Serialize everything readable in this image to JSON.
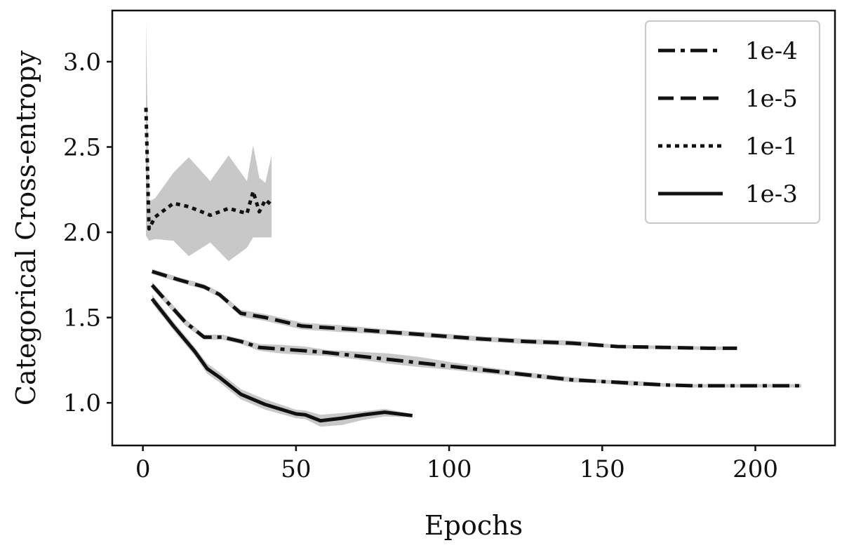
{
  "chart_data": {
    "type": "line",
    "title": "",
    "xlabel": "Epochs",
    "ylabel": "Categorical Cross-entropy",
    "xlim": [
      -10,
      226
    ],
    "ylim": [
      0.75,
      3.3
    ],
    "xticks": [
      0,
      50,
      100,
      150,
      200
    ],
    "xtick_labels": [
      "0",
      "50",
      "100",
      "150",
      "200"
    ],
    "yticks": [
      1.0,
      1.5,
      2.0,
      2.5,
      3.0
    ],
    "ytick_labels": [
      "1.0",
      "1.5",
      "2.0",
      "2.5",
      "3.0"
    ],
    "grid": false,
    "legend_position": "top-right",
    "series": [
      {
        "name": "1e-4",
        "linestyle": "dashdot",
        "x": [
          3,
          8,
          14,
          20,
          26,
          32,
          38,
          45,
          53,
          60,
          70,
          80,
          90,
          100,
          110,
          120,
          130,
          140,
          150,
          160,
          170,
          180,
          190,
          200,
          215
        ],
        "y": [
          1.69,
          1.59,
          1.47,
          1.385,
          1.385,
          1.36,
          1.325,
          1.315,
          1.305,
          1.295,
          1.275,
          1.255,
          1.235,
          1.215,
          1.195,
          1.175,
          1.155,
          1.135,
          1.125,
          1.115,
          1.105,
          1.1,
          1.1,
          1.1,
          1.1
        ],
        "band_upper": [
          1.71,
          1.61,
          1.49,
          1.4,
          1.4,
          1.375,
          1.345,
          1.34,
          1.33,
          1.31,
          1.3,
          1.29,
          1.27,
          1.24,
          1.215,
          1.19,
          1.17,
          1.15,
          1.135,
          1.13,
          1.115,
          1.11,
          1.11,
          1.11,
          1.11
        ],
        "band_lower": [
          1.67,
          1.57,
          1.45,
          1.37,
          1.37,
          1.345,
          1.305,
          1.29,
          1.28,
          1.275,
          1.255,
          1.23,
          1.21,
          1.195,
          1.175,
          1.16,
          1.14,
          1.12,
          1.115,
          1.1,
          1.095,
          1.09,
          1.09,
          1.09,
          1.09
        ]
      },
      {
        "name": "1e-5",
        "linestyle": "dashed",
        "x": [
          3,
          12,
          20,
          25,
          32,
          40,
          52,
          65,
          80,
          95,
          110,
          125,
          140,
          155,
          170,
          185,
          194
        ],
        "y": [
          1.77,
          1.72,
          1.68,
          1.635,
          1.525,
          1.5,
          1.45,
          1.435,
          1.415,
          1.395,
          1.375,
          1.36,
          1.35,
          1.33,
          1.325,
          1.32,
          1.32
        ],
        "band_upper": [
          1.785,
          1.735,
          1.695,
          1.65,
          1.545,
          1.52,
          1.47,
          1.455,
          1.43,
          1.41,
          1.39,
          1.375,
          1.365,
          1.34,
          1.335,
          1.33,
          1.33
        ],
        "band_lower": [
          1.755,
          1.705,
          1.665,
          1.62,
          1.505,
          1.48,
          1.43,
          1.415,
          1.4,
          1.38,
          1.36,
          1.345,
          1.335,
          1.32,
          1.315,
          1.31,
          1.31
        ]
      },
      {
        "name": "1e-1",
        "linestyle": "dotted",
        "x": [
          1,
          2,
          4,
          10,
          15,
          22,
          28,
          34,
          36,
          38,
          40,
          42
        ],
        "y": [
          2.73,
          2.02,
          2.09,
          2.17,
          2.15,
          2.1,
          2.14,
          2.11,
          2.24,
          2.12,
          2.19,
          2.16
        ],
        "band_upper": [
          3.24,
          2.18,
          2.2,
          2.35,
          2.44,
          2.3,
          2.45,
          2.3,
          2.51,
          2.32,
          2.29,
          2.45
        ],
        "band_lower": [
          1.98,
          1.95,
          1.96,
          1.95,
          1.86,
          1.94,
          1.83,
          1.91,
          1.97,
          1.97,
          1.97,
          1.97
        ]
      },
      {
        "name": "1e-3",
        "linestyle": "solid",
        "x": [
          3,
          10,
          17,
          21,
          25,
          32,
          40,
          50,
          53,
          58,
          65,
          72,
          79,
          88
        ],
        "y": [
          1.61,
          1.45,
          1.3,
          1.2,
          1.15,
          1.05,
          0.99,
          0.935,
          0.93,
          0.895,
          0.91,
          0.93,
          0.945,
          0.925
        ],
        "band_upper": [
          1.635,
          1.475,
          1.325,
          1.23,
          1.18,
          1.08,
          1.02,
          0.96,
          0.955,
          0.93,
          0.94,
          0.95,
          0.965,
          0.935
        ],
        "band_lower": [
          1.585,
          1.425,
          1.275,
          1.17,
          1.12,
          1.02,
          0.96,
          0.91,
          0.905,
          0.86,
          0.87,
          0.9,
          0.92,
          0.915
        ]
      }
    ]
  }
}
